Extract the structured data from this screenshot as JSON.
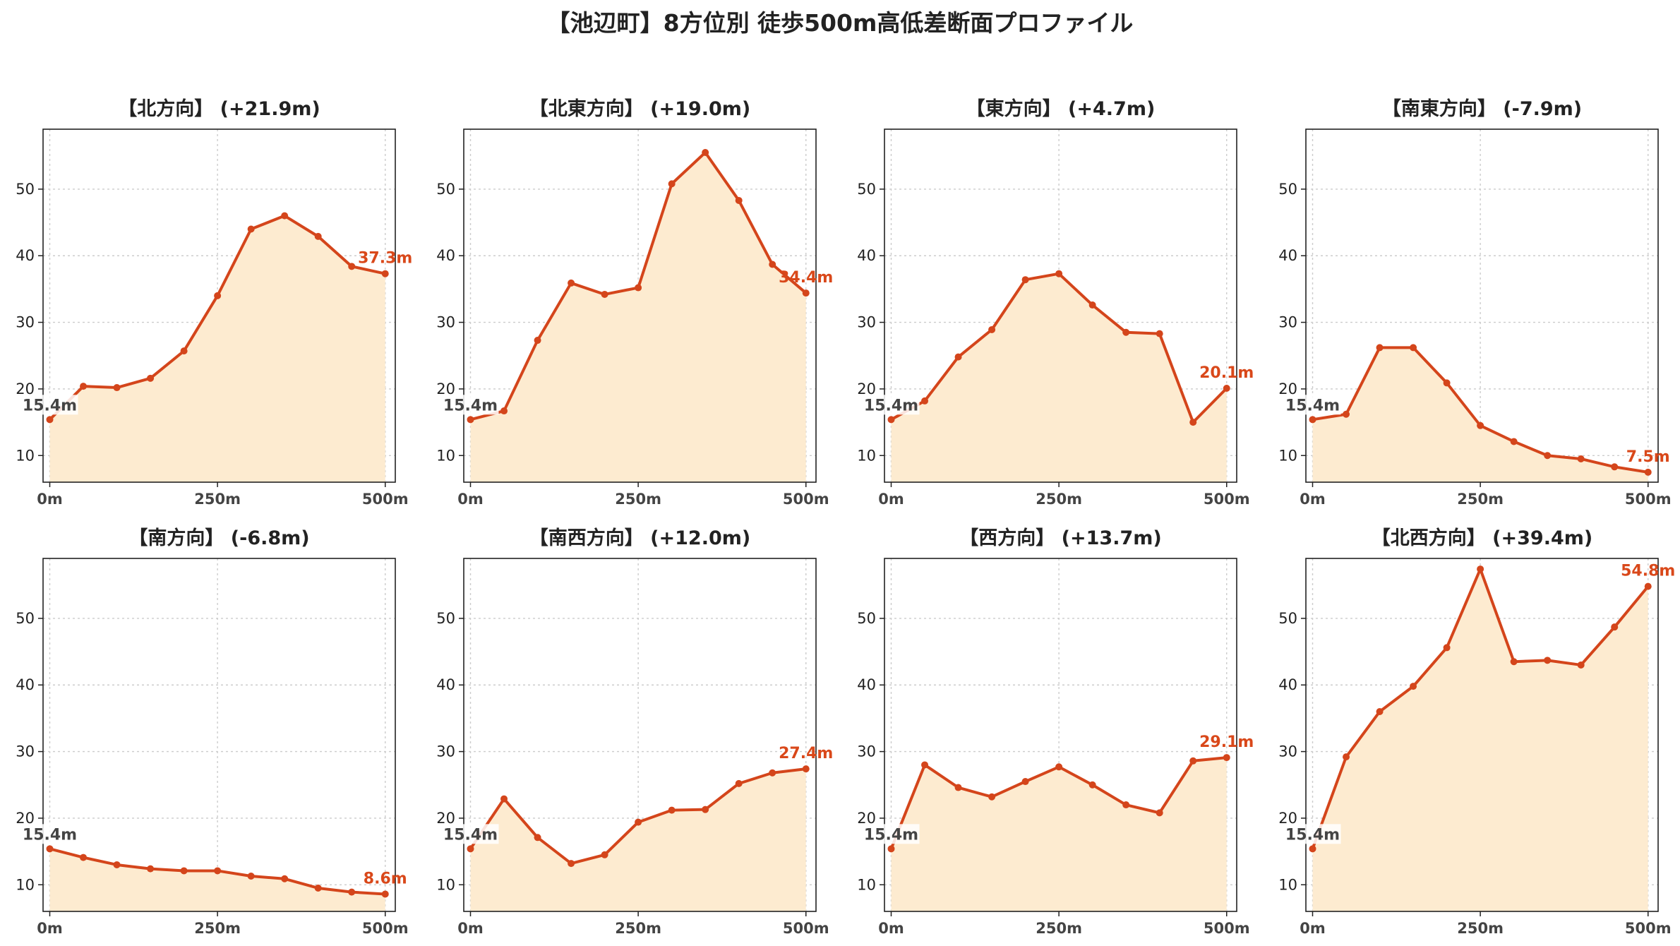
{
  "title": "【池辺町】8方位別 徒歩500m高低差断面プロファイル",
  "colors": {
    "line": "#d4451b",
    "fill": "#fdebd0",
    "end_label": "#d9481a",
    "start_label": "#444444"
  },
  "chart_data": [
    {
      "type": "area",
      "title": "【北方向】 (+21.9m)",
      "x": [
        0,
        50,
        100,
        150,
        200,
        250,
        300,
        350,
        400,
        450,
        500
      ],
      "values": [
        15.4,
        20.4,
        20.2,
        21.6,
        25.7,
        34.0,
        44.0,
        46.0,
        42.9,
        38.4,
        37.3
      ],
      "start_label": "15.4m",
      "end_label": "37.3m",
      "xticks": [
        "0m",
        "250m",
        "500m"
      ],
      "yticks": [
        "10",
        "20",
        "30",
        "40",
        "50"
      ],
      "xlim": [
        -10,
        515
      ],
      "ylim": [
        6,
        59
      ],
      "grid": true
    },
    {
      "type": "area",
      "title": "【北東方向】 (+19.0m)",
      "x": [
        0,
        50,
        100,
        150,
        200,
        250,
        300,
        350,
        400,
        450,
        500
      ],
      "values": [
        15.4,
        16.7,
        27.3,
        35.9,
        34.2,
        35.2,
        50.8,
        55.5,
        48.3,
        38.7,
        34.4
      ],
      "start_label": "15.4m",
      "end_label": "34.4m",
      "xticks": [
        "0m",
        "250m",
        "500m"
      ],
      "yticks": [
        "10",
        "20",
        "30",
        "40",
        "50"
      ],
      "xlim": [
        -10,
        515
      ],
      "ylim": [
        6,
        59
      ],
      "grid": true
    },
    {
      "type": "area",
      "title": "【東方向】 (+4.7m)",
      "x": [
        0,
        50,
        100,
        150,
        200,
        250,
        300,
        350,
        400,
        450,
        500
      ],
      "values": [
        15.4,
        18.2,
        24.8,
        28.9,
        36.4,
        37.3,
        32.6,
        28.5,
        28.3,
        15.0,
        20.1
      ],
      "start_label": "15.4m",
      "end_label": "20.1m",
      "xticks": [
        "0m",
        "250m",
        "500m"
      ],
      "yticks": [
        "10",
        "20",
        "30",
        "40",
        "50"
      ],
      "xlim": [
        -10,
        515
      ],
      "ylim": [
        6,
        59
      ],
      "grid": true
    },
    {
      "type": "area",
      "title": "【南東方向】 (-7.9m)",
      "x": [
        0,
        50,
        100,
        150,
        200,
        250,
        300,
        350,
        400,
        450,
        500
      ],
      "values": [
        15.4,
        16.2,
        26.2,
        26.2,
        20.9,
        14.5,
        12.1,
        10.0,
        9.5,
        8.3,
        7.5
      ],
      "start_label": "15.4m",
      "end_label": "7.5m",
      "xticks": [
        "0m",
        "250m",
        "500m"
      ],
      "yticks": [
        "10",
        "20",
        "30",
        "40",
        "50"
      ],
      "xlim": [
        -10,
        515
      ],
      "ylim": [
        6,
        59
      ],
      "grid": true
    },
    {
      "type": "area",
      "title": "【南方向】 (-6.8m)",
      "x": [
        0,
        50,
        100,
        150,
        200,
        250,
        300,
        350,
        400,
        450,
        500
      ],
      "values": [
        15.4,
        14.1,
        13.0,
        12.4,
        12.1,
        12.1,
        11.3,
        10.9,
        9.5,
        8.9,
        8.6
      ],
      "start_label": "15.4m",
      "end_label": "8.6m",
      "xticks": [
        "0m",
        "250m",
        "500m"
      ],
      "yticks": [
        "10",
        "20",
        "30",
        "40",
        "50"
      ],
      "xlim": [
        -10,
        515
      ],
      "ylim": [
        6,
        59
      ],
      "grid": true
    },
    {
      "type": "area",
      "title": "【南西方向】 (+12.0m)",
      "x": [
        0,
        50,
        100,
        150,
        200,
        250,
        300,
        350,
        400,
        450,
        500
      ],
      "values": [
        15.4,
        22.9,
        17.1,
        13.2,
        14.5,
        19.4,
        21.2,
        21.3,
        25.2,
        26.8,
        27.4
      ],
      "start_label": "15.4m",
      "end_label": "27.4m",
      "xticks": [
        "0m",
        "250m",
        "500m"
      ],
      "yticks": [
        "10",
        "20",
        "30",
        "40",
        "50"
      ],
      "xlim": [
        -10,
        515
      ],
      "ylim": [
        6,
        59
      ],
      "grid": true
    },
    {
      "type": "area",
      "title": "【西方向】 (+13.7m)",
      "x": [
        0,
        50,
        100,
        150,
        200,
        250,
        300,
        350,
        400,
        450,
        500
      ],
      "values": [
        15.4,
        28.0,
        24.6,
        23.2,
        25.5,
        27.7,
        25.0,
        22.0,
        20.8,
        28.6,
        29.1
      ],
      "start_label": "15.4m",
      "end_label": "29.1m",
      "xticks": [
        "0m",
        "250m",
        "500m"
      ],
      "yticks": [
        "10",
        "20",
        "30",
        "40",
        "50"
      ],
      "xlim": [
        -10,
        515
      ],
      "ylim": [
        6,
        59
      ],
      "grid": true
    },
    {
      "type": "area",
      "title": "【北西方向】 (+39.4m)",
      "x": [
        0,
        50,
        100,
        150,
        200,
        250,
        300,
        350,
        400,
        450,
        500
      ],
      "values": [
        15.4,
        29.2,
        36.0,
        39.8,
        45.6,
        57.4,
        43.5,
        43.7,
        43.0,
        48.7,
        54.8
      ],
      "start_label": "15.4m",
      "end_label": "54.8m",
      "xticks": [
        "0m",
        "250m",
        "500m"
      ],
      "yticks": [
        "10",
        "20",
        "30",
        "40",
        "50"
      ],
      "xlim": [
        -10,
        515
      ],
      "ylim": [
        6,
        59
      ],
      "grid": true
    }
  ]
}
